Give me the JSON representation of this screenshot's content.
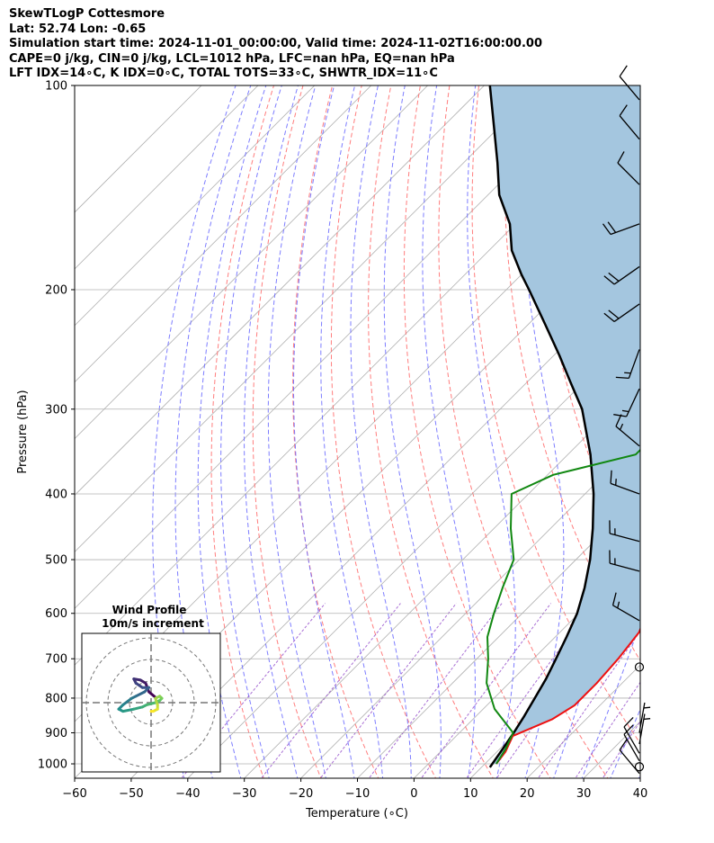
{
  "header": {
    "line1": "SkewTLogP Cottesmore",
    "line2": "Lat: 52.74   Lon: -0.65",
    "line3": "Simulation start time: 2024-11-01_00:00:00, Valid time: 2024-11-02T16:00:00.00",
    "line4": "CAPE=0 j/kg, CIN=0 j/kg, LCL=1012 hPa, LFC=nan hPa, EQ=nan hPa",
    "line5": "LFT IDX=14∘C, K IDX=0∘C, TOTAL TOTS=33∘C, SHWTR_IDX=11∘C"
  },
  "chart_data": {
    "type": "line",
    "subtype": "skew-t log-p",
    "xlabel": "Temperature (∘C)",
    "ylabel": "Pressure (hPa)",
    "xlim": [
      -60,
      40
    ],
    "ylim": [
      1050,
      100
    ],
    "y_scale": "log",
    "grid": true,
    "x_ticks": [
      -60,
      -50,
      -40,
      -30,
      -20,
      -10,
      0,
      10,
      20,
      30,
      40
    ],
    "x_tick_labels": [
      "−60",
      "−50",
      "−40",
      "−30",
      "−20",
      "−10",
      "0",
      "10",
      "20",
      "30",
      "40"
    ],
    "y_ticks": [
      1000,
      900,
      800,
      700,
      600,
      500,
      400,
      300,
      200,
      100
    ],
    "y_tick_labels": [
      "1000",
      "900",
      "800",
      "700",
      "600",
      "500",
      "400",
      "300",
      "200",
      "100"
    ],
    "colors": {
      "temperature": "#ee1111",
      "dewpoint": "#118811",
      "parcel": "#000000",
      "cin_cape_fill": "#a4c6df",
      "dry_adiabats": "#ff6666",
      "moist_adiabats": "#6666ff",
      "mixing_ratio": "#9955cc",
      "isotherms": "#b0b0b0"
    },
    "series": [
      {
        "key": "temperature",
        "points": [
          [
            12,
            1000
          ],
          [
            11.5,
            960
          ],
          [
            10,
            910
          ],
          [
            14,
            860
          ],
          [
            15.5,
            820
          ],
          [
            15.5,
            760
          ],
          [
            15,
            700
          ],
          [
            14,
            640
          ],
          [
            12,
            600
          ],
          [
            8,
            550
          ],
          [
            5,
            500
          ],
          [
            1,
            450
          ],
          [
            -3,
            400
          ],
          [
            -8,
            360
          ],
          [
            -10,
            320
          ],
          [
            -14,
            280
          ],
          [
            -19,
            250
          ],
          [
            -27,
            220
          ],
          [
            -34,
            200
          ],
          [
            -40,
            185
          ],
          [
            -43,
            170
          ],
          [
            -43,
            160
          ],
          [
            -44,
            150
          ],
          [
            -47,
            140
          ],
          [
            -46,
            130
          ],
          [
            -47,
            120
          ],
          [
            -50,
            110
          ],
          [
            -53,
            100
          ]
        ]
      },
      {
        "key": "dewpoint",
        "points": [
          [
            12,
            1000
          ],
          [
            11,
            950
          ],
          [
            9.5,
            900
          ],
          [
            2,
            830
          ],
          [
            -4,
            760
          ],
          [
            -8,
            700
          ],
          [
            -12,
            650
          ],
          [
            -15,
            600
          ],
          [
            -18,
            550
          ],
          [
            -21,
            500
          ],
          [
            -27,
            450
          ],
          [
            -33,
            400
          ],
          [
            -29,
            375
          ],
          [
            -18,
            350
          ],
          [
            -18,
            320
          ],
          [
            -24,
            290
          ],
          [
            -30,
            260
          ],
          [
            -34,
            240
          ],
          [
            -38,
            200
          ],
          [
            -44,
            185
          ],
          [
            -48,
            175
          ],
          [
            -52,
            165
          ],
          [
            -54,
            155
          ],
          [
            -53,
            145
          ],
          [
            -51,
            135
          ],
          [
            -55,
            125
          ],
          [
            -58,
            115
          ],
          [
            -58,
            100
          ]
        ]
      },
      {
        "key": "parcel",
        "points": [
          [
            11.5,
            1012
          ],
          [
            10.5,
            950
          ],
          [
            9.6,
            900
          ],
          [
            8.5,
            850
          ],
          [
            7.2,
            800
          ],
          [
            5.8,
            750
          ],
          [
            4.0,
            700
          ],
          [
            2.0,
            650
          ],
          [
            -0.3,
            600
          ],
          [
            -3.5,
            550
          ],
          [
            -7.5,
            500
          ],
          [
            -12.5,
            450
          ],
          [
            -18.5,
            400
          ],
          [
            -26,
            350
          ],
          [
            -35.5,
            300
          ],
          [
            -42,
            275
          ],
          [
            -49,
            250
          ],
          [
            -57,
            225
          ],
          [
            -66,
            200
          ],
          [
            -70,
            190
          ],
          [
            -76,
            175
          ],
          [
            -81,
            160
          ],
          [
            -88,
            145
          ],
          [
            -94,
            130
          ],
          [
            -101,
            115
          ],
          [
            -109,
            100
          ]
        ]
      }
    ],
    "wind_barbs": [
      {
        "p": 1033,
        "speed_kt": 10,
        "dir": 320
      },
      {
        "p": 1010,
        "speed_kt": 0
      },
      {
        "p": 990,
        "speed_kt": 10,
        "dir": 330
      },
      {
        "p": 965,
        "speed_kt": 10,
        "dir": 330
      },
      {
        "p": 935,
        "speed_kt": 5,
        "dir": 10
      },
      {
        "p": 900,
        "speed_kt": 5,
        "dir": 10
      },
      {
        "p": 720,
        "speed_kt": 0
      },
      {
        "p": 615,
        "speed_kt": 15,
        "dir": 300
      },
      {
        "p": 520,
        "speed_kt": 15,
        "dir": 285
      },
      {
        "p": 470,
        "speed_kt": 15,
        "dir": 285
      },
      {
        "p": 400,
        "speed_kt": 15,
        "dir": 290
      },
      {
        "p": 340,
        "speed_kt": 15,
        "dir": 310
      },
      {
        "p": 280,
        "speed_kt": 15,
        "dir": 205
      },
      {
        "p": 245,
        "speed_kt": 15,
        "dir": 200
      },
      {
        "p": 210,
        "speed_kt": 20,
        "dir": 235
      },
      {
        "p": 185,
        "speed_kt": 20,
        "dir": 235
      },
      {
        "p": 160,
        "speed_kt": 20,
        "dir": 250
      },
      {
        "p": 140,
        "speed_kt": 10,
        "dir": 315
      },
      {
        "p": 120,
        "speed_kt": 10,
        "dir": 320
      },
      {
        "p": 105,
        "speed_kt": 10,
        "dir": 320
      }
    ],
    "inset": {
      "title": "Wind Profile",
      "subtitle": "10m/s increment",
      "rings_mps": [
        10,
        20,
        30
      ],
      "hodograph": [
        [
          2.1,
          2.4
        ],
        [
          -1,
          5
        ],
        [
          -2.5,
          9
        ],
        [
          -5,
          10.5
        ],
        [
          -8,
          11
        ],
        [
          -7,
          9
        ],
        [
          -4,
          7
        ],
        [
          -1,
          7
        ],
        [
          -3,
          5
        ],
        [
          -7,
          3
        ],
        [
          -9,
          2
        ],
        [
          -13,
          -1
        ],
        [
          -15,
          -3
        ],
        [
          -13,
          -4
        ],
        [
          -8,
          -3
        ],
        [
          -4,
          -2
        ],
        [
          -2,
          -1
        ],
        [
          2,
          0
        ],
        [
          4,
          1
        ],
        [
          5,
          2
        ],
        [
          4,
          3
        ],
        [
          2,
          2
        ],
        [
          3,
          -1
        ],
        [
          3,
          -3
        ],
        [
          1,
          -4
        ],
        [
          0,
          -4
        ]
      ]
    }
  }
}
